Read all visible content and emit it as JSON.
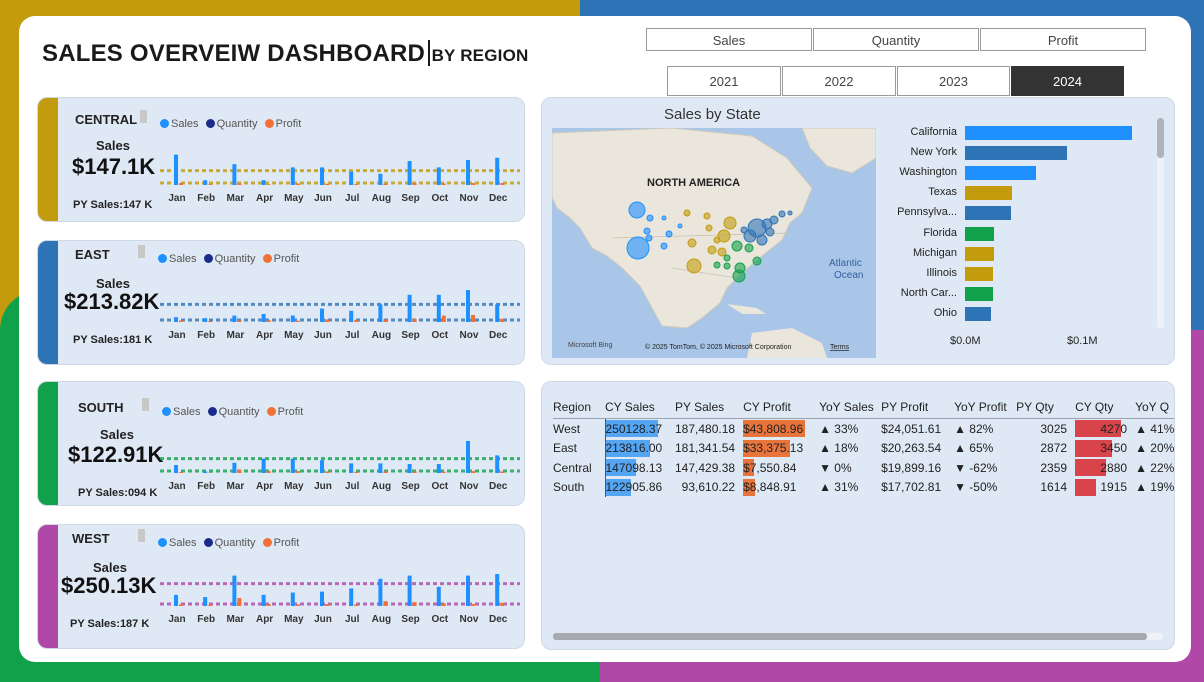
{
  "colors": {
    "yellow": "#c39b0d",
    "blue": "#2f73b7",
    "green": "#12a14b",
    "purple": "#b048a8",
    "sales": "#1e90ff",
    "quantity": "#1a2b8c",
    "profit": "#f07036"
  },
  "header": {
    "title": "SALES OVERVEIW DASHBOARD",
    "subtitle": "BY REGION"
  },
  "measures": [
    "Sales",
    "Quantity",
    "Profit"
  ],
  "years": [
    "2021",
    "2022",
    "2023",
    "2024"
  ],
  "selected_year": "2024",
  "months": [
    "Jan",
    "Feb",
    "Mar",
    "Apr",
    "May",
    "Jun",
    "Jul",
    "Aug",
    "Sep",
    "Oct",
    "Nov",
    "Dec"
  ],
  "legend": {
    "sales": "Sales",
    "quantity": "Quantity",
    "profit": "Profit"
  },
  "regions": [
    {
      "name": "CENTRAL",
      "sales_label": "Sales",
      "sales_value": "$147.1K",
      "py_sales": "PY Sales:147 K",
      "color": "#c39b0d",
      "sales_series": [
        0.95,
        0.15,
        0.65,
        0.15,
        0.55,
        0.55,
        0.42,
        0.35,
        0.75,
        0.55,
        0.78,
        0.85
      ],
      "profit_series": [
        0.06,
        0.02,
        0.05,
        0.02,
        0.05,
        0.04,
        0.03,
        0.04,
        0.06,
        0.05,
        0.06,
        0.06
      ]
    },
    {
      "name": "EAST",
      "sales_label": "Sales",
      "sales_value": "$213.82K",
      "py_sales": "PY Sales:181 K",
      "color": "#2f73b7",
      "sales_series": [
        0.15,
        0.12,
        0.2,
        0.25,
        0.2,
        0.42,
        0.35,
        0.55,
        0.85,
        0.85,
        1.0,
        0.55
      ],
      "profit_series": [
        0.05,
        0.03,
        0.05,
        0.06,
        0.04,
        0.08,
        0.06,
        0.08,
        0.1,
        0.2,
        0.22,
        0.1
      ]
    },
    {
      "name": "SOUTH",
      "sales_label": "Sales",
      "sales_value": "$122.91K",
      "py_sales": "PY Sales:094 K",
      "color": "#12a14b",
      "sales_series": [
        0.25,
        0.05,
        0.32,
        0.45,
        0.45,
        0.4,
        0.3,
        0.3,
        0.28,
        0.28,
        1.0,
        0.55
      ],
      "profit_series": [
        0.03,
        0.01,
        0.1,
        0.06,
        0.06,
        0.05,
        0.04,
        0.05,
        0.05,
        0.04,
        0.06,
        0.05
      ]
    },
    {
      "name": "WEST",
      "sales_label": "Sales",
      "sales_value": "$250.13K",
      "py_sales": "PY Sales:187 K",
      "color": "#b048a8",
      "sales_series": [
        0.35,
        0.28,
        0.95,
        0.35,
        0.42,
        0.45,
        0.55,
        0.85,
        0.95,
        0.6,
        0.95,
        1.0
      ],
      "profit_series": [
        0.05,
        0.04,
        0.25,
        0.06,
        0.05,
        0.06,
        0.05,
        0.15,
        0.12,
        0.08,
        0.06,
        0.1
      ]
    }
  ],
  "sales_by_state": {
    "title": "Sales by State",
    "map_label": "NORTH AMERICA",
    "ocean_label": [
      "Atlantic",
      "Ocean"
    ],
    "map_credit": "© 2025 TomTom, © 2025 Microsoft Corporation",
    "terms": "Terms",
    "bing": "Microsoft Bing",
    "chart_data": {
      "type": "bar",
      "categories": [
        "California",
        "New York",
        "Washington",
        "Texas",
        "Pennsylva...",
        "Florida",
        "Michigan",
        "Illinois",
        "North Car...",
        "Ohio"
      ],
      "values": [
        0.146,
        0.089,
        0.062,
        0.041,
        0.04,
        0.025,
        0.025,
        0.024,
        0.024,
        0.023
      ],
      "colors": [
        "#1e90ff",
        "#2f73b7",
        "#1e90ff",
        "#c39b0d",
        "#2f73b7",
        "#12a14b",
        "#c39b0d",
        "#c39b0d",
        "#12a14b",
        "#2f73b7"
      ],
      "xlim": [
        0,
        0.15
      ],
      "xticks": [
        "$0.0M",
        "$0.1M"
      ]
    }
  },
  "table": {
    "headers": [
      "Region",
      "CY Sales",
      "PY Sales",
      "CY Profit",
      "YoY Sales",
      "PY Profit",
      "YoY Profit",
      "PY Qty",
      "CY Qty",
      "YoY Q"
    ],
    "rows": [
      {
        "region": "West",
        "cy_sales": "250128.37",
        "py_sales": "187,480.18",
        "cy_profit": "$43,808.96",
        "yoy_sales": "▲ 33%",
        "py_profit": "$24,051.61",
        "yoy_profit": "▲ 82%",
        "py_qty": "3025",
        "cy_qty": "4270",
        "yoy_qty": "▲ 41%",
        "cy_sales_frac": 1.0,
        "cy_profit_frac": 1.0,
        "cy_qty_frac": 1.0
      },
      {
        "region": "East",
        "cy_sales": "213816.00",
        "py_sales": "181,341.54",
        "cy_profit": "$33,375.13",
        "yoy_sales": "▲ 18%",
        "py_profit": "$20,263.54",
        "yoy_profit": "▲ 65%",
        "py_qty": "2872",
        "cy_qty": "3450",
        "yoy_qty": "▲ 20%",
        "cy_sales_frac": 0.85,
        "cy_profit_frac": 0.76,
        "cy_qty_frac": 0.81
      },
      {
        "region": "Central",
        "cy_sales": "147098.13",
        "py_sales": "147,429.38",
        "cy_profit": "$7,550.84",
        "yoy_sales": "▼ 0%",
        "py_profit": "$19,899.16",
        "yoy_profit": "▼ -62%",
        "py_qty": "2359",
        "cy_qty": "2880",
        "yoy_qty": "▲ 22%",
        "cy_sales_frac": 0.59,
        "cy_profit_frac": 0.17,
        "cy_qty_frac": 0.67
      },
      {
        "region": "South",
        "cy_sales": "122905.86",
        "py_sales": "93,610.22",
        "cy_profit": "$8,848.91",
        "yoy_sales": "▲ 31%",
        "py_profit": "$17,702.81",
        "yoy_profit": "▼ -50%",
        "py_qty": "1614",
        "cy_qty": "1915",
        "yoy_qty": "▲ 19%",
        "cy_sales_frac": 0.49,
        "cy_profit_frac": 0.2,
        "cy_qty_frac": 0.45
      }
    ]
  }
}
